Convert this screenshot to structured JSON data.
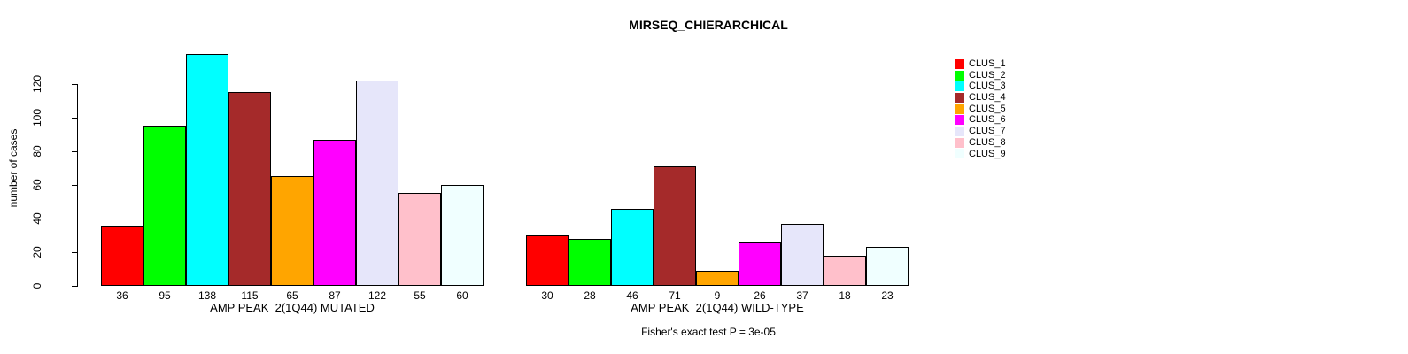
{
  "page": {
    "background": "#FFFFFF",
    "text_color": "#000000"
  },
  "chart_data": {
    "type": "bar",
    "title": "MIRSEQ_CHIERARCHICAL",
    "ylabel": "number of cases",
    "xlabel": "",
    "categories": [
      "AMP PEAK  2(1Q44) MUTATED",
      "AMP PEAK  2(1Q44) WILD-TYPE"
    ],
    "series": [
      {
        "name": "CLUS_1",
        "color": "#FF0000",
        "values": [
          36,
          30
        ]
      },
      {
        "name": "CLUS_2",
        "color": "#00FF00",
        "values": [
          95,
          28
        ]
      },
      {
        "name": "CLUS_3",
        "color": "#00FFFF",
        "values": [
          138,
          46
        ]
      },
      {
        "name": "CLUS_4",
        "color": "#A52A2A",
        "values": [
          115,
          71
        ]
      },
      {
        "name": "CLUS_5",
        "color": "#FFA500",
        "values": [
          65,
          9
        ]
      },
      {
        "name": "CLUS_6",
        "color": "#FF00FF",
        "values": [
          87,
          26
        ]
      },
      {
        "name": "CLUS_7",
        "color": "#E6E6FA",
        "values": [
          122,
          37
        ]
      },
      {
        "name": "CLUS_8",
        "color": "#FFC0CB",
        "values": [
          55,
          18
        ]
      },
      {
        "name": "CLUS_9",
        "color": "#F0FFFF",
        "values": [
          60,
          23
        ]
      }
    ],
    "yticks": [
      0,
      20,
      40,
      60,
      80,
      100,
      120
    ],
    "ylim": [
      0,
      138
    ],
    "grid": false,
    "legend_position": "right",
    "bar_border_color": "#000000",
    "bar_value_labels_shown": true,
    "annotation": "Fisher's exact test P = 3e-05"
  }
}
